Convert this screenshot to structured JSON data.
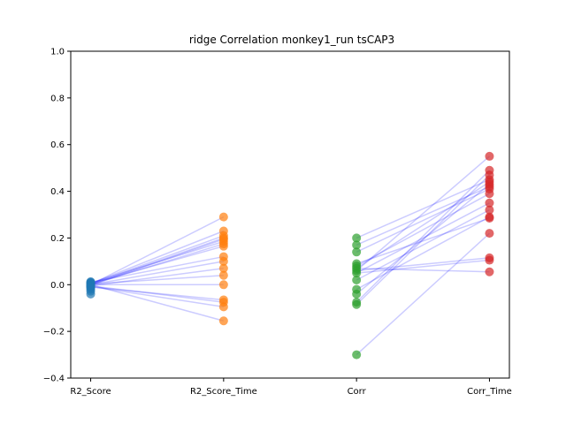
{
  "chart_data": {
    "type": "scatter",
    "title": "ridge Correlation monkey1_run tsCAP3",
    "xlabel": "",
    "ylabel": "",
    "categories": [
      "R2_Score",
      "R2_Score_Time",
      "Corr",
      "Corr_Time"
    ],
    "ylim": [
      -0.4,
      1.0
    ],
    "yticks": [
      "−0.4",
      "−0.2",
      "0.0",
      "0.2",
      "0.4",
      "0.6",
      "0.8",
      "1.0"
    ],
    "grid": false,
    "legend": false,
    "line_color": "#0000ff",
    "series": [
      {
        "category": "R2_Score",
        "color": "#1f77b4",
        "values": [
          0.013,
          0.01,
          0.008,
          0.005,
          0.003,
          0.0,
          -0.003,
          -0.005,
          -0.008,
          -0.01,
          -0.013,
          -0.02,
          -0.028,
          -0.04
        ]
      },
      {
        "category": "R2_Score_Time",
        "color": "#ff7f0e",
        "values": [
          0.29,
          0.23,
          0.21,
          0.2,
          0.195,
          0.185,
          0.175,
          0.165,
          0.12,
          0.1,
          0.07,
          0.04,
          0.0,
          -0.065,
          -0.075,
          -0.095,
          -0.155
        ]
      },
      {
        "category": "Corr",
        "color": "#2ca02c",
        "values": [
          0.2,
          0.17,
          0.14,
          0.09,
          0.08,
          0.07,
          0.06,
          0.05,
          0.02,
          -0.02,
          -0.04,
          -0.075,
          -0.085,
          -0.3
        ]
      },
      {
        "category": "Corr_Time",
        "color": "#d62728",
        "values": [
          0.55,
          0.49,
          0.47,
          0.45,
          0.44,
          0.43,
          0.42,
          0.41,
          0.39,
          0.35,
          0.32,
          0.29,
          0.285,
          0.22,
          0.115,
          0.105,
          0.055
        ]
      }
    ],
    "connections": [
      {
        "from": "R2_Score",
        "to": "R2_Score_Time",
        "pairs": [
          [
            0.0,
            0.29
          ],
          [
            0.005,
            0.23
          ],
          [
            0.003,
            0.21
          ],
          [
            0.0,
            0.2
          ],
          [
            -0.003,
            0.195
          ],
          [
            0.008,
            0.185
          ],
          [
            0.0,
            0.175
          ],
          [
            0.005,
            0.165
          ],
          [
            0.01,
            0.12
          ],
          [
            0.0,
            0.1
          ],
          [
            -0.005,
            0.07
          ],
          [
            0.003,
            0.04
          ],
          [
            0.0,
            0.0
          ],
          [
            -0.01,
            -0.065
          ],
          [
            -0.005,
            -0.075
          ],
          [
            -0.008,
            -0.095
          ],
          [
            0.0,
            -0.155
          ]
        ]
      },
      {
        "from": "Corr",
        "to": "Corr_Time",
        "pairs": [
          [
            0.06,
            0.55
          ],
          [
            -0.075,
            0.49
          ],
          [
            -0.085,
            0.47
          ],
          [
            0.2,
            0.45
          ],
          [
            0.07,
            0.44
          ],
          [
            -0.04,
            0.43
          ],
          [
            0.17,
            0.42
          ],
          [
            0.14,
            0.41
          ],
          [
            0.08,
            0.39
          ],
          [
            0.05,
            0.35
          ],
          [
            0.02,
            0.32
          ],
          [
            -0.02,
            0.29
          ],
          [
            0.09,
            0.285
          ],
          [
            -0.3,
            0.22
          ],
          [
            0.06,
            0.115
          ],
          [
            0.05,
            0.105
          ],
          [
            0.07,
            0.055
          ]
        ]
      }
    ]
  }
}
